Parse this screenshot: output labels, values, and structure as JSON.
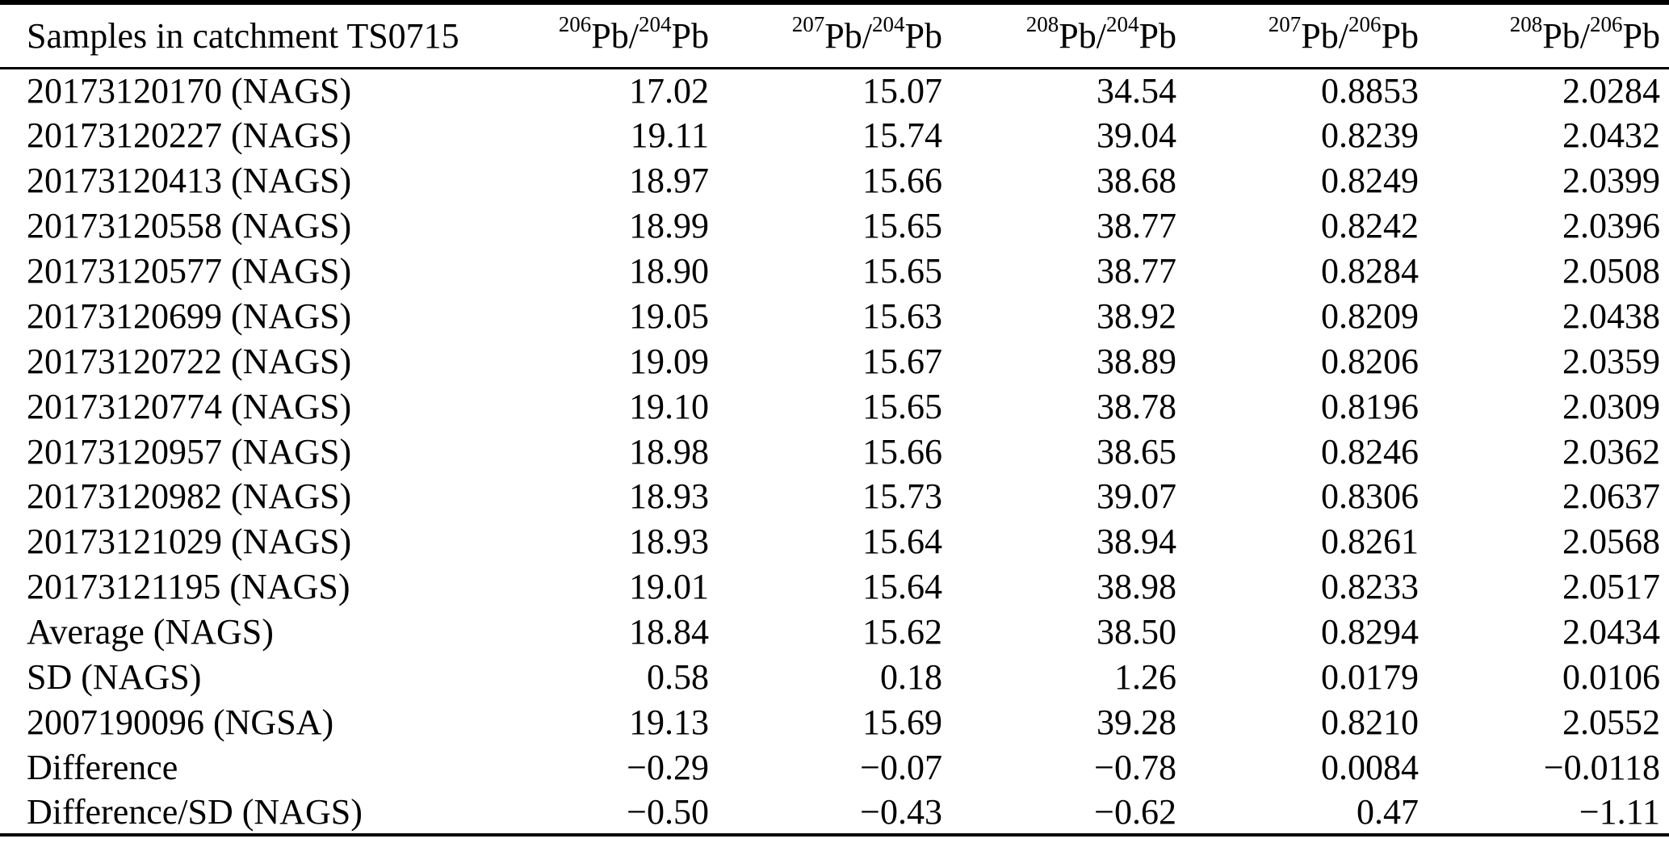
{
  "page": {
    "background_color": "#ffffff",
    "text_color": "#000000",
    "rule_color": "#000000"
  },
  "table": {
    "header": {
      "sample_column_label": "Samples in catchment TS0715",
      "isotope_columns": [
        {
          "mass_top": "206",
          "element_top": "Pb",
          "separator": "/",
          "mass_bottom": "204",
          "element_bottom": "Pb"
        },
        {
          "mass_top": "207",
          "element_top": "Pb",
          "separator": "/",
          "mass_bottom": "204",
          "element_bottom": "Pb"
        },
        {
          "mass_top": "208",
          "element_top": "Pb",
          "separator": "/",
          "mass_bottom": "204",
          "element_bottom": "Pb"
        },
        {
          "mass_top": "207",
          "element_top": "Pb",
          "separator": "/",
          "mass_bottom": "206",
          "element_bottom": "Pb"
        },
        {
          "mass_top": "208",
          "element_top": "Pb",
          "separator": "/",
          "mass_bottom": "206",
          "element_bottom": "Pb"
        }
      ]
    },
    "rows": [
      {
        "label": "20173120170 (NAGS)",
        "values": [
          "17.02",
          "15.07",
          "34.54",
          "0.8853",
          "2.0284"
        ]
      },
      {
        "label": "20173120227 (NAGS)",
        "values": [
          "19.11",
          "15.74",
          "39.04",
          "0.8239",
          "2.0432"
        ]
      },
      {
        "label": "20173120413 (NAGS)",
        "values": [
          "18.97",
          "15.66",
          "38.68",
          "0.8249",
          "2.0399"
        ]
      },
      {
        "label": "20173120558 (NAGS)",
        "values": [
          "18.99",
          "15.65",
          "38.77",
          "0.8242",
          "2.0396"
        ]
      },
      {
        "label": "20173120577 (NAGS)",
        "values": [
          "18.90",
          "15.65",
          "38.77",
          "0.8284",
          "2.0508"
        ]
      },
      {
        "label": "20173120699 (NAGS)",
        "values": [
          "19.05",
          "15.63",
          "38.92",
          "0.8209",
          "2.0438"
        ]
      },
      {
        "label": "20173120722 (NAGS)",
        "values": [
          "19.09",
          "15.67",
          "38.89",
          "0.8206",
          "2.0359"
        ]
      },
      {
        "label": "20173120774 (NAGS)",
        "values": [
          "19.10",
          "15.65",
          "38.78",
          "0.8196",
          "2.0309"
        ]
      },
      {
        "label": "20173120957 (NAGS)",
        "values": [
          "18.98",
          "15.66",
          "38.65",
          "0.8246",
          "2.0362"
        ]
      },
      {
        "label": "20173120982 (NAGS)",
        "values": [
          "18.93",
          "15.73",
          "39.07",
          "0.8306",
          "2.0637"
        ]
      },
      {
        "label": "20173121029 (NAGS)",
        "values": [
          "18.93",
          "15.64",
          "38.94",
          "0.8261",
          "2.0568"
        ]
      },
      {
        "label": "20173121195 (NAGS)",
        "values": [
          "19.01",
          "15.64",
          "38.98",
          "0.8233",
          "2.0517"
        ]
      },
      {
        "label": "Average (NAGS)",
        "values": [
          "18.84",
          "15.62",
          "38.50",
          "0.8294",
          "2.0434"
        ]
      },
      {
        "label": "SD (NAGS)",
        "values": [
          "0.58",
          "0.18",
          "1.26",
          "0.0179",
          "0.0106"
        ]
      },
      {
        "label": "2007190096 (NGSA)",
        "values": [
          "19.13",
          "15.69",
          "39.28",
          "0.8210",
          "2.0552"
        ]
      },
      {
        "label": "Difference",
        "values": [
          "−0.29",
          "−0.07",
          "−0.78",
          "0.0084",
          "−0.0118"
        ]
      },
      {
        "label": "Difference/SD (NAGS)",
        "values": [
          "−0.50",
          "−0.43",
          "−0.62",
          "0.47",
          "−1.11"
        ]
      }
    ]
  }
}
